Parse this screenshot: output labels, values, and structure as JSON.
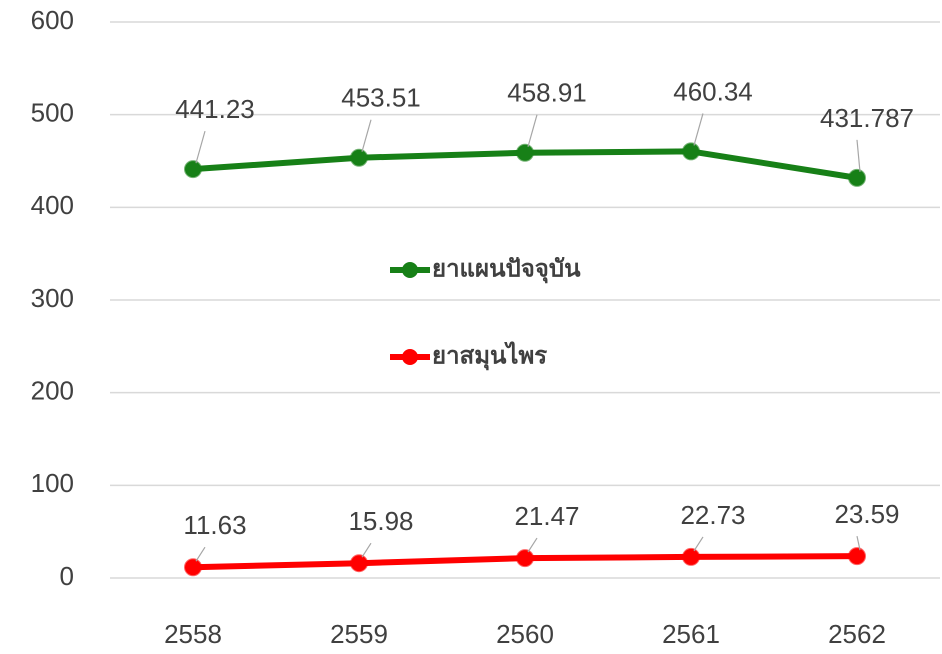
{
  "chart_data": {
    "type": "line",
    "categories": [
      "2558",
      "2559",
      "2560",
      "2561",
      "2562"
    ],
    "series": [
      {
        "name": "ยาแผนปัจจุบัน",
        "color": "#178017",
        "values": [
          441.23,
          453.51,
          458.91,
          460.34,
          431.787
        ]
      },
      {
        "name": "ยาสมุนไพร",
        "color": "#ff0000",
        "values": [
          11.63,
          15.98,
          21.47,
          22.73,
          23.59
        ]
      }
    ],
    "ylim": [
      0,
      600
    ],
    "yticks": [
      0,
      100,
      200,
      300,
      400,
      500,
      600
    ],
    "grid": true,
    "legend": "center"
  }
}
